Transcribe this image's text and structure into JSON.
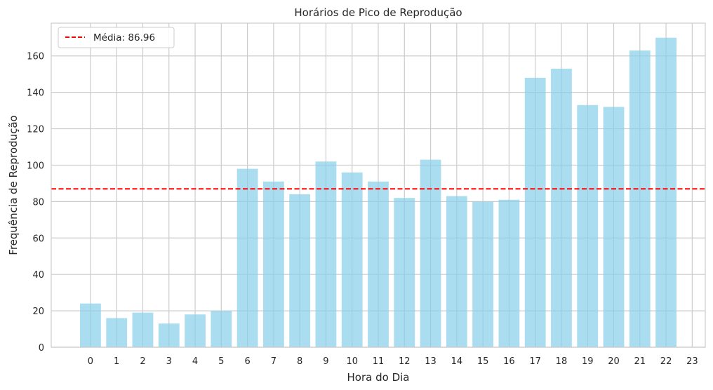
{
  "chart_data": {
    "type": "bar",
    "title": "Horários de Pico de Reprodução",
    "xlabel": "Hora do Dia",
    "ylabel": "Frequência de Reprodução",
    "categories": [
      "0",
      "1",
      "2",
      "3",
      "4",
      "5",
      "6",
      "7",
      "8",
      "9",
      "10",
      "11",
      "12",
      "13",
      "14",
      "15",
      "16",
      "17",
      "18",
      "19",
      "20",
      "21",
      "22",
      "23"
    ],
    "values": [
      24,
      16,
      19,
      13,
      18,
      20,
      98,
      91,
      84,
      102,
      96,
      91,
      82,
      103,
      83,
      80,
      81,
      148,
      153,
      133,
      132,
      163,
      170,
      null
    ],
    "yticks": [
      0,
      20,
      40,
      60,
      80,
      100,
      120,
      140,
      160
    ],
    "ylim": [
      0,
      178
    ],
    "xlim": [
      -1.5,
      23.5
    ],
    "grid": true,
    "bar_color": "#87ceeb",
    "mean_line": {
      "value": 86.96,
      "label": "Média: 86.96",
      "color": "#ff0000",
      "style": "dashed"
    },
    "legend": {
      "position": "top-left",
      "entries": [
        "Média: 86.96"
      ]
    }
  }
}
